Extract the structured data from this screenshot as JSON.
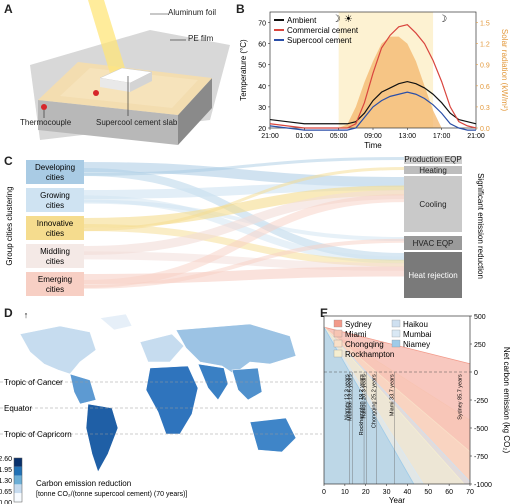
{
  "panels": {
    "a": "A",
    "b": "B",
    "c": "C",
    "d": "D",
    "e": "E"
  },
  "panel_a": {
    "labels": [
      "Aluminum foil",
      "PE film",
      "Thermocouple",
      "Supercool cement slab"
    ]
  },
  "panel_b": {
    "ylabel_left": "Temperature (°C)",
    "ylabel_right": "Solar radiation (kW/m²)",
    "xlabel": "Time",
    "icons": {
      "moon_left": "moon-icon",
      "sun": "sun-icon",
      "moon_right": "moon-icon"
    },
    "chart_data": {
      "type": "line",
      "x_ticks": [
        "21:00",
        "01:00",
        "05:00",
        "09:00",
        "13:00",
        "17:00",
        "21:00"
      ],
      "y_ticks": [
        20,
        30,
        40,
        50,
        60,
        70
      ],
      "y2_ticks": [
        0.0,
        0.3,
        0.6,
        0.9,
        1.2,
        1.5
      ],
      "ylim": [
        20,
        75
      ],
      "y2lim": [
        0,
        1.65
      ],
      "legend": [
        "Ambient",
        "Commercial cement",
        "Supercool cement"
      ],
      "series": [
        {
          "name": "Ambient",
          "color": "#111111",
          "x": [
            0,
            2,
            4,
            6,
            7,
            8,
            9,
            10,
            11,
            12,
            13,
            14,
            15,
            16,
            17,
            18,
            19,
            20,
            21,
            22,
            23,
            24
          ],
          "values": [
            24,
            23,
            22,
            22,
            22,
            22,
            22,
            23,
            27,
            33,
            37,
            39,
            41,
            42,
            41,
            39,
            36,
            32,
            27,
            24,
            23,
            22
          ]
        },
        {
          "name": "Commercial cement",
          "color": "#d9453e",
          "x": [
            0,
            2,
            4,
            6,
            7,
            8,
            9,
            10,
            11,
            12,
            13,
            14,
            15,
            16,
            17,
            18,
            19,
            20,
            21,
            22,
            23,
            24
          ],
          "values": [
            22,
            21,
            20,
            20,
            20,
            20,
            20,
            22,
            32,
            46,
            58,
            64,
            68,
            69,
            65,
            60,
            52,
            42,
            30,
            23,
            21,
            20
          ]
        },
        {
          "name": "Supercool cement",
          "color": "#2b4fa8",
          "x": [
            0,
            2,
            4,
            6,
            7,
            8,
            9,
            10,
            11,
            12,
            13,
            14,
            15,
            16,
            17,
            18,
            19,
            20,
            21,
            22,
            23,
            24
          ],
          "values": [
            21,
            20,
            19,
            19,
            19,
            19,
            19,
            20,
            25,
            30,
            33,
            35,
            36,
            37,
            36,
            34,
            31,
            27,
            22,
            20,
            19,
            19
          ]
        },
        {
          "name": "Solar radiation",
          "color": "#f3b56b",
          "axis": "right",
          "x": [
            0,
            8,
            9,
            10,
            11,
            12,
            13,
            14,
            15,
            16,
            17,
            18,
            19,
            20,
            24
          ],
          "values": [
            0,
            0,
            0.05,
            0.3,
            0.65,
            0.95,
            1.2,
            1.3,
            1.3,
            1.2,
            0.95,
            0.6,
            0.25,
            0,
            0
          ]
        }
      ]
    }
  },
  "panel_c": {
    "left_axis_label": "Group cities clustering",
    "right_axis_label": "Significant emission reduction",
    "groups": [
      {
        "label": "Developing cities",
        "color": "#a9cbe4"
      },
      {
        "label": "Growing cities",
        "color": "#cfe3f2"
      },
      {
        "label": "Innovative cities",
        "color": "#f5dc8e"
      },
      {
        "label": "Middling cities",
        "color": "#f4e9e6"
      },
      {
        "label": "Emerging cities",
        "color": "#f7cfc4"
      }
    ],
    "categories": [
      {
        "label": "Production EQP",
        "color": "#cfcfcf"
      },
      {
        "label": "Heating",
        "color": "#bdbdbd"
      },
      {
        "label": "Cooling",
        "color": "#c9c9c9"
      },
      {
        "label": "HVAC EQP",
        "color": "#9a9a9a"
      },
      {
        "label": "Heat rejection",
        "color": "#7a7a7a"
      }
    ]
  },
  "panel_d": {
    "lines": [
      "Tropic of Cancer",
      "Equator",
      "Tropic of Capricorn"
    ],
    "colorbar": {
      "ticks": [
        "2.60",
        "1.95",
        "1.30",
        "0.65",
        "0.00"
      ],
      "label_line1": "Carbon emission reduction",
      "label_line2": "[tonne CO₂/(tonne supercool cement) (70 years)]"
    },
    "compass_icon": "north-arrow-icon"
  },
  "panel_e": {
    "ylabel": "Net carbon emission (kg CO₂)",
    "xlabel": "Year",
    "legend": [
      {
        "label": "Sydney",
        "color": "#f29a8a"
      },
      {
        "label": "Haikou",
        "color": "#cfe0f0"
      },
      {
        "label": "Miami",
        "color": "#f7c4b3"
      },
      {
        "label": "Mumbai",
        "color": "#d9e8f4"
      },
      {
        "label": "Chongqing",
        "color": "#f9e0c8"
      },
      {
        "label": "Niamey",
        "color": "#9fcbe8"
      },
      {
        "label": "Rockhampton",
        "color": "#f5eed0"
      }
    ],
    "chart_data": {
      "type": "area",
      "x_ticks": [
        0,
        10,
        20,
        30,
        40,
        50,
        60,
        70
      ],
      "y_ticks": [
        500,
        250,
        0,
        -250,
        -500,
        -750,
        -1000
      ],
      "xlim": [
        0,
        70
      ],
      "ylim": [
        -1000,
        500
      ],
      "initial_emission": 400,
      "payback": [
        {
          "name": "Niamey",
          "years": 12.3
        },
        {
          "name": "Mumbai",
          "years": 13.6
        },
        {
          "name": "Rockhampton",
          "years": 19.2
        },
        {
          "name": "Haikou",
          "years": 20.3
        },
        {
          "name": "Chongqing",
          "years": 25.2
        },
        {
          "name": "Miami",
          "years": 33.7
        },
        {
          "name": "Sydney",
          "years": 85.7
        }
      ],
      "annotations": [
        "Niamey 12.3 years",
        "Mumbai 13.6 years",
        "Rockhampton 19.2 years",
        "Haikou 20.3 years",
        "Chongqing 25.2 years",
        "Miami 33.7 years",
        "Sydney 85.7 years"
      ]
    }
  }
}
